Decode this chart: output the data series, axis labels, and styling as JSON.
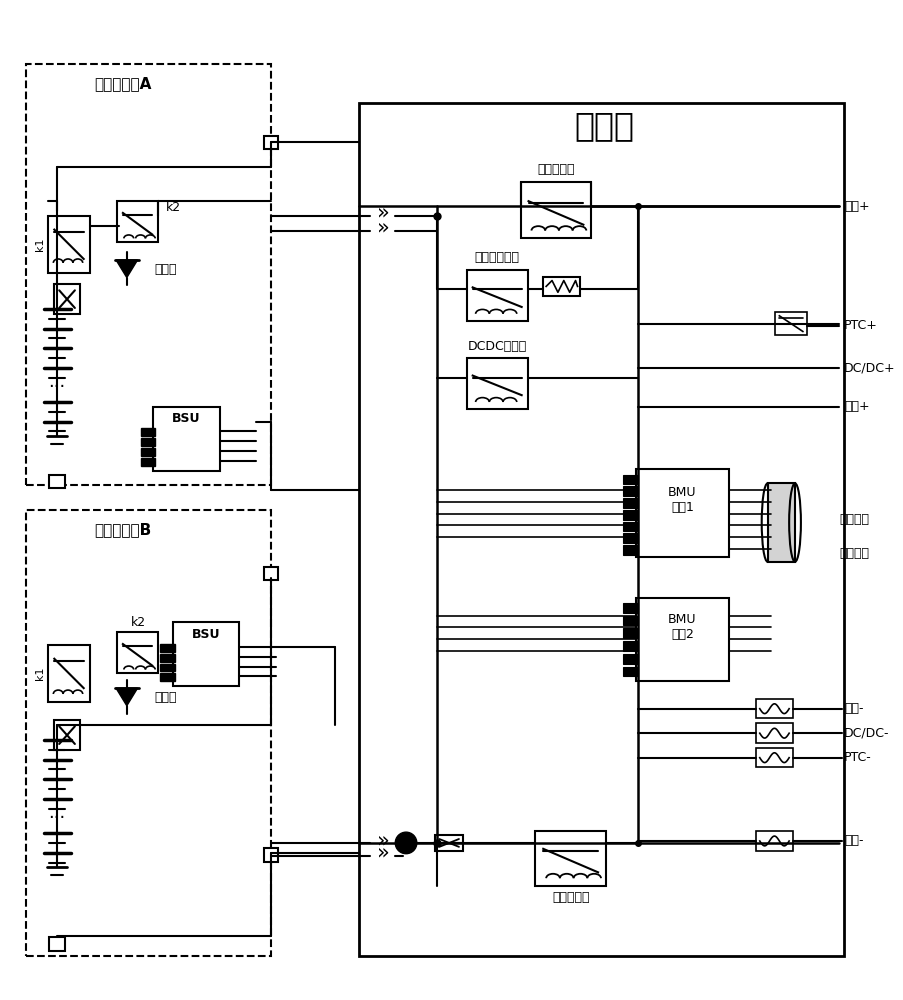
{
  "title": "高压箱",
  "subsystem_a_label": "电池子系统A",
  "subsystem_b_label": "电池子系统B",
  "k1_label": "k1",
  "k2_label": "k2",
  "diode_label": "二极管",
  "bsu_label": "BSU",
  "relay1_label": "总正继电器",
  "relay2_label": "预充电继电器",
  "relay3_label": "DCDC继电器",
  "relay4_label": "总负继电器",
  "bmu1_label": "BMU\n主控1",
  "bmu2_label": "BMU\n主控2",
  "right_labels": [
    "电机+",
    "PTC+",
    "DC/DC+",
    "慢充+",
    "充电通讯",
    "电源通讯",
    "慢充-",
    "DC/DC-",
    "PTC-",
    "电机-"
  ],
  "bg_color": "#ffffff",
  "line_color": "#000000"
}
